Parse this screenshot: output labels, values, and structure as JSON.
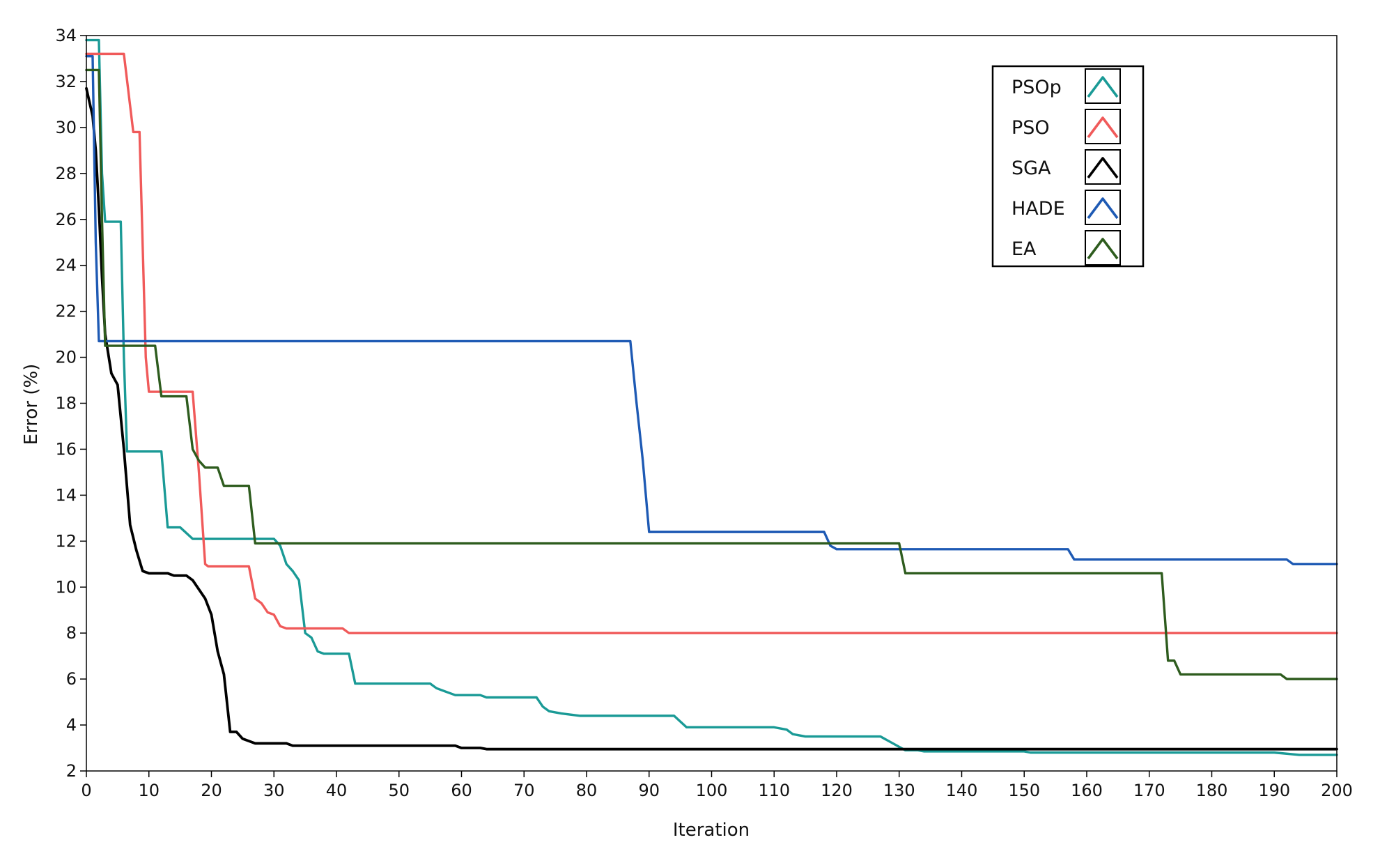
{
  "chart_data": {
    "type": "line",
    "title": "",
    "xlabel": "Iteration",
    "ylabel": "Error (%)",
    "xlim": [
      0,
      200
    ],
    "ylim": [
      2,
      34
    ],
    "xticks": [
      0,
      10,
      20,
      30,
      40,
      50,
      60,
      70,
      80,
      90,
      100,
      110,
      120,
      130,
      140,
      150,
      160,
      170,
      180,
      190,
      200
    ],
    "yticks": [
      2,
      4,
      6,
      8,
      10,
      12,
      14,
      16,
      18,
      20,
      22,
      24,
      26,
      28,
      30,
      32,
      34
    ],
    "legend_position": "top-right",
    "grid": false,
    "series": [
      {
        "name": "PSOp",
        "color": "#1a9a96",
        "points": [
          [
            0,
            33.8
          ],
          [
            2,
            33.8
          ],
          [
            2.5,
            28
          ],
          [
            3,
            25.9
          ],
          [
            5.5,
            25.9
          ],
          [
            6,
            20
          ],
          [
            6.5,
            15.9
          ],
          [
            12,
            15.9
          ],
          [
            13,
            12.6
          ],
          [
            15,
            12.6
          ],
          [
            17,
            12.1
          ],
          [
            30,
            12.1
          ],
          [
            31,
            11.8
          ],
          [
            32,
            11.0
          ],
          [
            33,
            10.7
          ],
          [
            34,
            10.3
          ],
          [
            35,
            8.0
          ],
          [
            36,
            7.8
          ],
          [
            37,
            7.2
          ],
          [
            38,
            7.1
          ],
          [
            42,
            7.1
          ],
          [
            43,
            5.8
          ],
          [
            55,
            5.8
          ],
          [
            56,
            5.6
          ],
          [
            58,
            5.4
          ],
          [
            59,
            5.3
          ],
          [
            63,
            5.3
          ],
          [
            64,
            5.2
          ],
          [
            72,
            5.2
          ],
          [
            73,
            4.8
          ],
          [
            74,
            4.6
          ],
          [
            76,
            4.5
          ],
          [
            79,
            4.4
          ],
          [
            94,
            4.4
          ],
          [
            96,
            3.9
          ],
          [
            110,
            3.9
          ],
          [
            112,
            3.8
          ],
          [
            113,
            3.6
          ],
          [
            115,
            3.5
          ],
          [
            127,
            3.5
          ],
          [
            129,
            3.2
          ],
          [
            131,
            2.9
          ],
          [
            133,
            2.9
          ],
          [
            134,
            2.85
          ],
          [
            150,
            2.85
          ],
          [
            151,
            2.8
          ],
          [
            190,
            2.8
          ],
          [
            194,
            2.7
          ],
          [
            200,
            2.7
          ]
        ]
      },
      {
        "name": "PSO",
        "color": "#f05a5a",
        "points": [
          [
            0,
            33.2
          ],
          [
            6,
            33.2
          ],
          [
            7.5,
            29.8
          ],
          [
            8.5,
            29.8
          ],
          [
            9.5,
            20
          ],
          [
            10,
            18.5
          ],
          [
            17,
            18.5
          ],
          [
            18,
            15
          ],
          [
            19,
            11
          ],
          [
            19.5,
            10.9
          ],
          [
            26,
            10.9
          ],
          [
            27,
            9.5
          ],
          [
            28,
            9.3
          ],
          [
            29,
            8.9
          ],
          [
            30,
            8.8
          ],
          [
            31,
            8.3
          ],
          [
            32,
            8.2
          ],
          [
            41,
            8.2
          ],
          [
            42,
            8.0
          ],
          [
            200,
            8.0
          ]
        ]
      },
      {
        "name": "SGA",
        "color": "#000000",
        "points": [
          [
            0,
            31.7
          ],
          [
            1,
            30.5
          ],
          [
            1.5,
            29
          ],
          [
            2,
            26.5
          ],
          [
            2.5,
            23.5
          ],
          [
            3,
            21
          ],
          [
            4,
            19.3
          ],
          [
            5,
            18.8
          ],
          [
            6,
            16
          ],
          [
            7,
            12.7
          ],
          [
            8,
            11.6
          ],
          [
            9,
            10.7
          ],
          [
            10,
            10.6
          ],
          [
            13,
            10.6
          ],
          [
            14,
            10.5
          ],
          [
            16,
            10.5
          ],
          [
            17,
            10.3
          ],
          [
            19,
            9.5
          ],
          [
            20,
            8.8
          ],
          [
            21,
            7.2
          ],
          [
            22,
            6.2
          ],
          [
            23,
            3.7
          ],
          [
            24,
            3.7
          ],
          [
            25,
            3.4
          ],
          [
            26,
            3.3
          ],
          [
            27,
            3.2
          ],
          [
            32,
            3.2
          ],
          [
            33,
            3.1
          ],
          [
            35,
            3.1
          ],
          [
            36,
            3.1
          ],
          [
            59,
            3.1
          ],
          [
            60,
            3.0
          ],
          [
            63,
            3.0
          ],
          [
            64,
            2.95
          ],
          [
            200,
            2.95
          ]
        ]
      },
      {
        "name": "HADE",
        "color": "#1e5ab4",
        "points": [
          [
            0,
            33.1
          ],
          [
            1,
            33.1
          ],
          [
            1.5,
            25
          ],
          [
            2,
            20.7
          ],
          [
            87,
            20.7
          ],
          [
            88,
            18
          ],
          [
            89,
            15.5
          ],
          [
            90,
            12.4
          ],
          [
            118,
            12.4
          ],
          [
            119,
            11.8
          ],
          [
            120,
            11.65
          ],
          [
            157,
            11.65
          ],
          [
            158,
            11.2
          ],
          [
            192,
            11.2
          ],
          [
            193,
            11.0
          ],
          [
            200,
            11.0
          ]
        ]
      },
      {
        "name": "EA",
        "color": "#2e5c1e",
        "points": [
          [
            0,
            32.5
          ],
          [
            2,
            32.5
          ],
          [
            2.5,
            26
          ],
          [
            3,
            20.5
          ],
          [
            11,
            20.5
          ],
          [
            12,
            18.3
          ],
          [
            16,
            18.3
          ],
          [
            17,
            16
          ],
          [
            18,
            15.5
          ],
          [
            19,
            15.2
          ],
          [
            21,
            15.2
          ],
          [
            22,
            14.4
          ],
          [
            26,
            14.4
          ],
          [
            27,
            11.9
          ],
          [
            130,
            11.9
          ],
          [
            131,
            10.6
          ],
          [
            172,
            10.6
          ],
          [
            173,
            6.8
          ],
          [
            174,
            6.8
          ],
          [
            175,
            6.2
          ],
          [
            191,
            6.2
          ],
          [
            192,
            6.0
          ],
          [
            200,
            6.0
          ]
        ]
      }
    ]
  }
}
